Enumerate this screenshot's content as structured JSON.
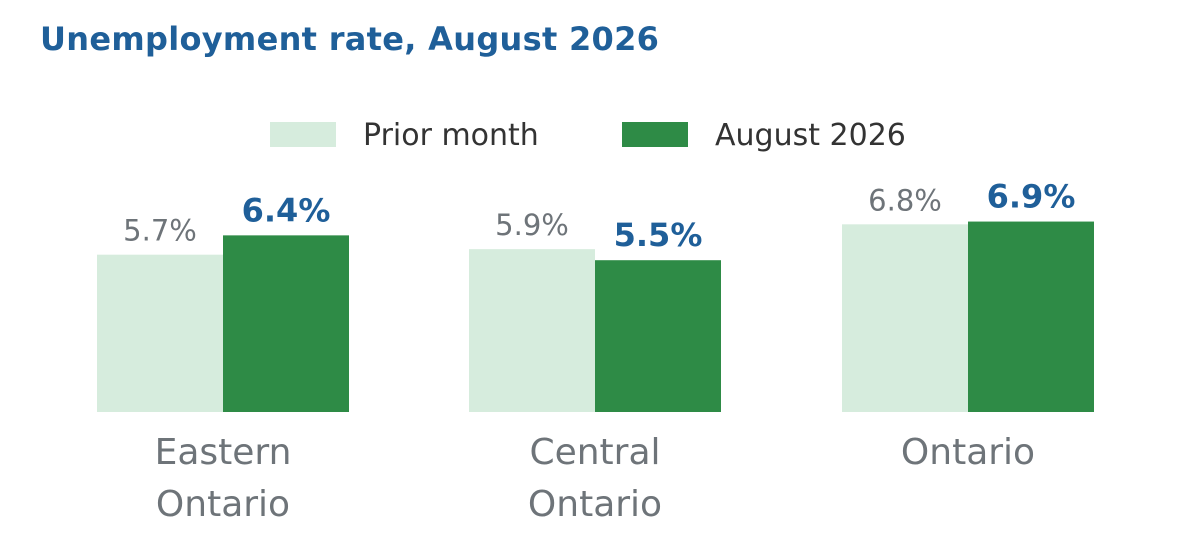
{
  "title": "Unemployment rate, August 2026",
  "chart_data": {
    "type": "bar",
    "title": "Unemployment rate, August 2026",
    "categories": [
      [
        "Eastern",
        "Ontario"
      ],
      [
        "Central",
        "Ontario"
      ],
      [
        "Ontario"
      ]
    ],
    "series": [
      {
        "name": "Prior month",
        "values": [
          5.7,
          5.9,
          6.8
        ],
        "labels": [
          "5.7%",
          "5.9%",
          "6.8%"
        ],
        "color": "#d6ecdd"
      },
      {
        "name": "August 2026",
        "values": [
          6.4,
          5.5,
          6.9
        ],
        "labels": [
          "6.4%",
          "5.5%",
          "6.9%"
        ],
        "color": "#2e8b46"
      }
    ],
    "legend_position": "top-center",
    "grid": false,
    "axes_visible": false
  }
}
